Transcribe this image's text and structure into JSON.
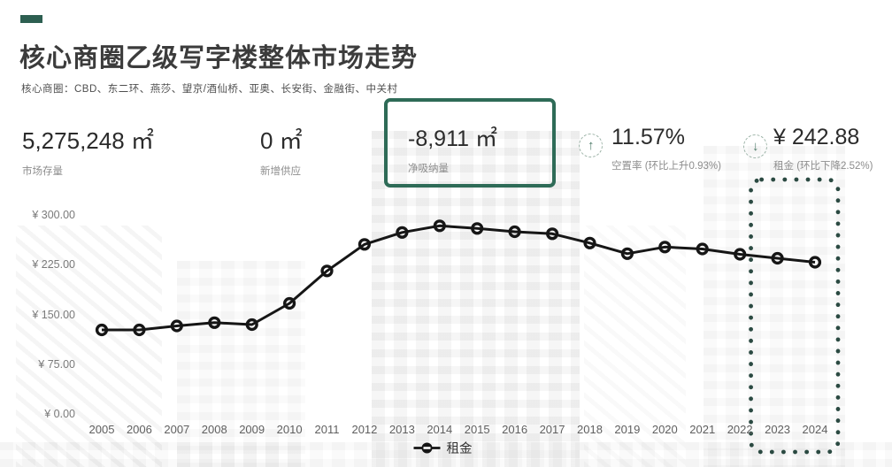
{
  "colors": {
    "accent_green": "#2E6B57",
    "dash_green": "#2D5F51",
    "dot_green": "#2B4A42",
    "trend_green": "#4D7A68",
    "line_black": "#161616"
  },
  "header": {
    "title": "核心商圈乙级写字楼整体市场走势",
    "subtitle": "核心商圈：CBD、东二环、燕莎、望京/酒仙桥、亚奥、长安街、金融街、中关村"
  },
  "icons": {
    "trend_up": "↑",
    "trend_down": "↓"
  },
  "stats": [
    {
      "value": "5,275,248 ㎡",
      "label": "市场存量"
    },
    {
      "value": "0 ㎡",
      "label": "新增供应"
    },
    {
      "value": "-8,911 ㎡",
      "label": "净吸纳量",
      "highlighted": true
    },
    {
      "value": "11.57%",
      "label": "空置率 (环比上升0.93%)",
      "trend": "up"
    },
    {
      "value": "¥ 242.88",
      "label": "租金 (环比下降2.52%)",
      "trend": "down"
    }
  ],
  "chart_data": {
    "type": "line",
    "title": "核心商圈乙级写字楼整体市场走势",
    "x": [
      "2005",
      "2006",
      "2007",
      "2008",
      "2009",
      "2010",
      "2011",
      "2012",
      "2013",
      "2014",
      "2015",
      "2016",
      "2017",
      "2018",
      "2019",
      "2020",
      "2021",
      "2022",
      "2023",
      "2024"
    ],
    "series": [
      {
        "name": "租金",
        "values": [
          128,
          128,
          134,
          139,
          136,
          168,
          217,
          257,
          275,
          285,
          281,
          276,
          273,
          259,
          243,
          253,
          250,
          242,
          236,
          230
        ]
      }
    ],
    "ylim": [
      0,
      300
    ],
    "y_ticks": {
      "values": [
        0,
        75,
        150,
        225,
        300
      ],
      "labels": [
        "¥ 0.00",
        "¥ 75.00",
        "¥ 150.00",
        "¥ 225.00",
        "¥ 300.00"
      ]
    },
    "grid": false,
    "legend": [
      "租金"
    ],
    "legend_position": "bottom",
    "highlight_years": [
      "2023",
      "2024"
    ]
  }
}
